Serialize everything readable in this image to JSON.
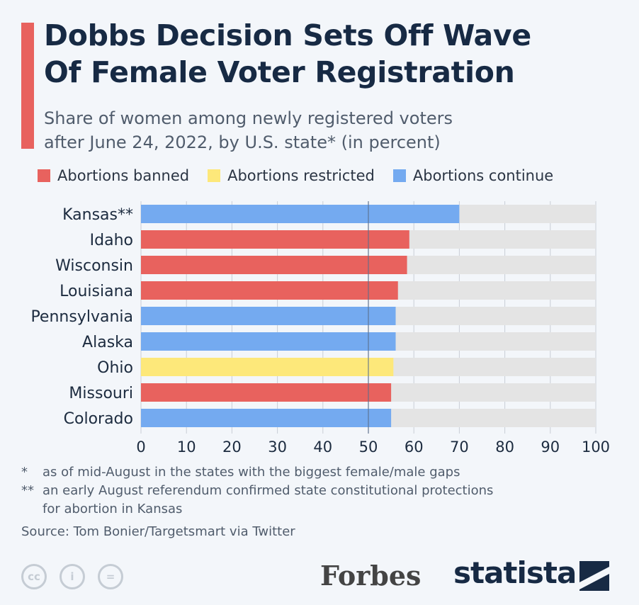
{
  "header": {
    "title_line1": "Dobbs Decision Sets Off Wave",
    "title_line2": "Of Female Voter Registration",
    "subtitle_line1": "Share of women among newly registered voters",
    "subtitle_line2": "after June 24, 2022, by U.S. state* (in percent)"
  },
  "colors": {
    "banned": "#e8625e",
    "restricted": "#fde87a",
    "continue": "#74aaf0",
    "track": "#e4e4e4"
  },
  "chart_data": {
    "type": "bar",
    "orientation": "horizontal",
    "title": "Dobbs Decision Sets Off Wave Of Female Voter Registration",
    "xlim": [
      0,
      100
    ],
    "xticks": [
      "0",
      "10",
      "20",
      "30",
      "40",
      "50",
      "60",
      "70",
      "80",
      "90",
      "100"
    ],
    "reference_line": 50,
    "legend": [
      {
        "key": "banned",
        "label": "Abortions banned"
      },
      {
        "key": "restricted",
        "label": "Abortions restricted"
      },
      {
        "key": "continue",
        "label": "Abortions continue"
      }
    ],
    "legend_position": "top",
    "categories": [
      "Kansas**",
      "Idaho",
      "Wisconsin",
      "Louisiana",
      "Pennsylvania",
      "Alaska",
      "Ohio",
      "Missouri",
      "Colorado"
    ],
    "values": [
      70,
      59,
      58.5,
      56.5,
      56,
      56,
      55.5,
      55,
      55
    ],
    "groups": [
      "continue",
      "banned",
      "banned",
      "banned",
      "continue",
      "continue",
      "restricted",
      "banned",
      "continue"
    ]
  },
  "footer": {
    "note1_mark": "*",
    "note1": "as of mid-August in the states with the biggest female/male gaps",
    "note2_mark": "**",
    "note2_line1": "an early August referendum confirmed state constitutional protections",
    "note2_line2": "for abortion in Kansas",
    "source": "Source: Tom Bonier/Targetsmart via Twitter",
    "cc_icons": [
      "cc",
      "i",
      "="
    ],
    "forbes": "Forbes",
    "statista": "statista"
  }
}
